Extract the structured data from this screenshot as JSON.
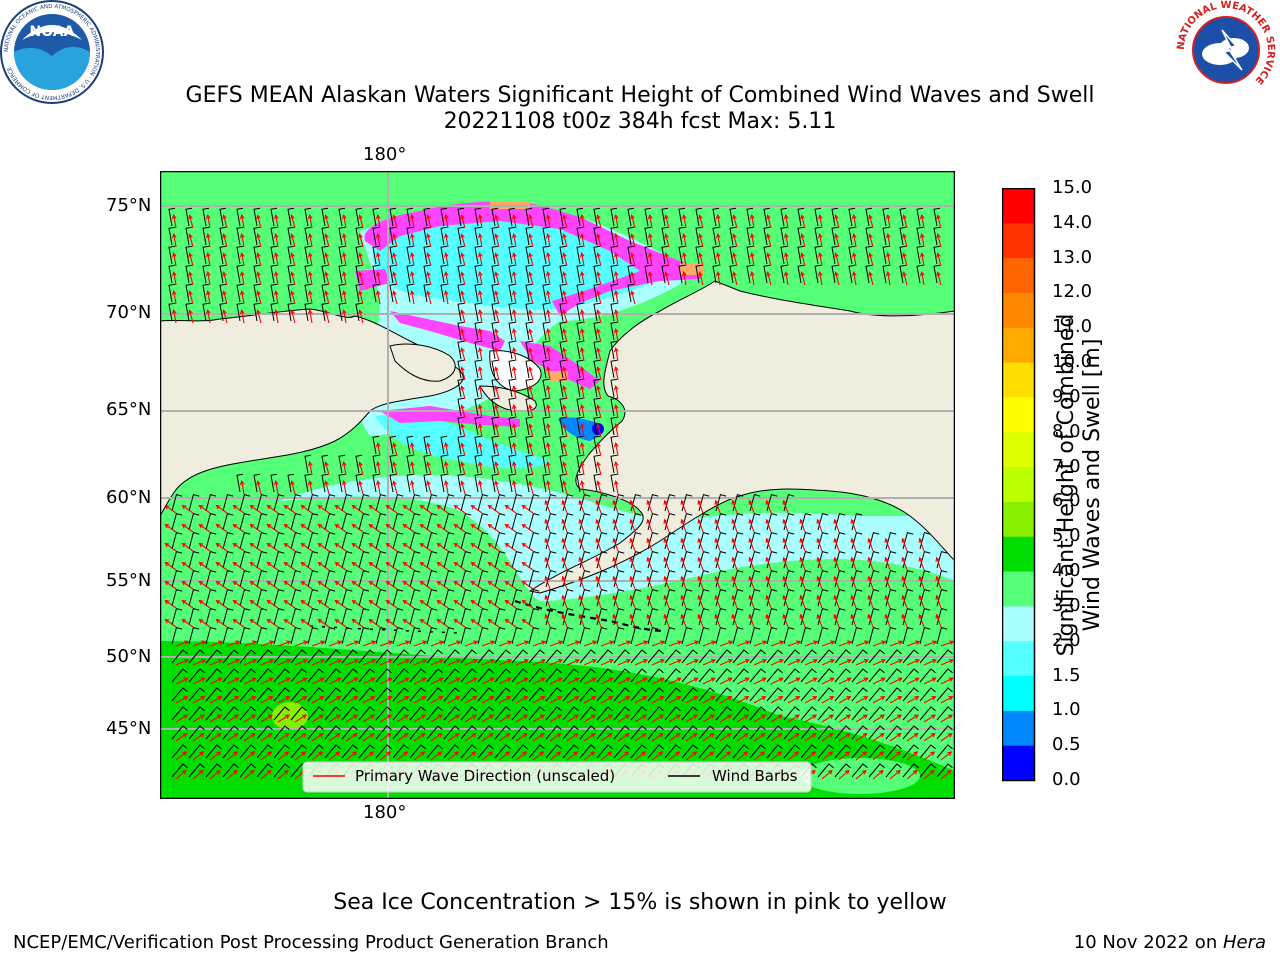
{
  "title": {
    "line1": "GEFS MEAN Alaskan Waters Significant Height of Combined Wind Waves and Swell",
    "line2": "20221108 t00z 384h fcst   Max: 5.11"
  },
  "map": {
    "lat_labels": [
      "75°N",
      "70°N",
      "65°N",
      "60°N",
      "55°N",
      "50°N",
      "45°N"
    ],
    "lon_label_top": "180°",
    "lon_label_bottom": "180°",
    "legend": {
      "wave_direction": "Primary Wave Direction (unscaled)",
      "wind_barbs": "Wind Barbs"
    },
    "colors": {
      "land": "#efedde",
      "wave_arrow": "#ff0000",
      "barb": "#000000",
      "gridline": "#b0b0b0",
      "ice": "#ff33ff"
    }
  },
  "colorbar": {
    "label_line1": "Significant Height of Combined",
    "label_line2": "Wind Waves and Swell [m]",
    "ticks": [
      "15.0",
      "14.0",
      "13.0",
      "12.0",
      "11.0",
      "10.0",
      "9.0",
      "8.0",
      "7.0",
      "6.0",
      "5.0",
      "4.0",
      "3.0",
      "2.0",
      "1.5",
      "1.0",
      "0.5",
      "0.0"
    ],
    "colors_top_to_bottom": [
      "#ff0000",
      "#ff3300",
      "#ff6600",
      "#ff8800",
      "#ffaa00",
      "#ffdd00",
      "#ffff00",
      "#ddff00",
      "#bbff00",
      "#88ee00",
      "#00dd00",
      "#55ff77",
      "#aaffff",
      "#55ffff",
      "#00ffff",
      "#0088ff",
      "#0000ff"
    ]
  },
  "logos": {
    "noaa_text": "NOAA",
    "noaa_ring": "NATIONAL OCEANIC AND ATMOSPHERIC ADMINISTRATION · U.S. DEPARTMENT OF COMMERCE",
    "nws_ring": "NATIONAL WEATHER SERVICE"
  },
  "footer": {
    "note": "Sea Ice Concentration > 15% is shown in pink to yellow",
    "left": "NCEP/EMC/Verification Post Processing Product Generation Branch",
    "right_prefix": "10 Nov 2022 on ",
    "right_host": "Hera"
  }
}
